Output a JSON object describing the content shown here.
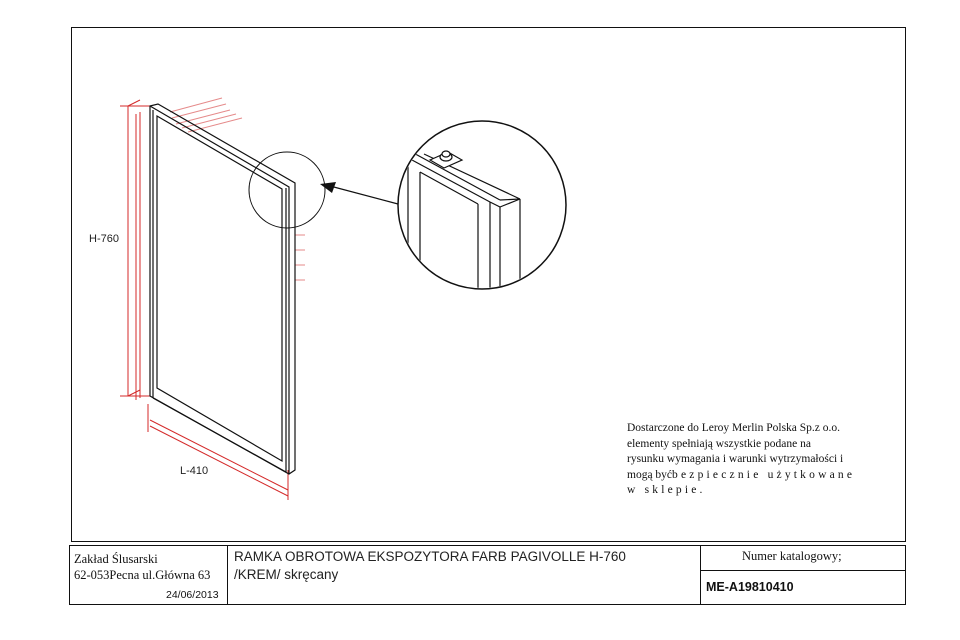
{
  "dimensions": {
    "height_label": "H-760",
    "length_label": "L-410"
  },
  "note": {
    "line1": "Dostarczone do Leroy Merlin Polska Sp.z o.o.",
    "line2": "elementy spełniają wszystkie podane na",
    "line3": "rysunku wymagania i warunki wytrzymałości i",
    "line4a": "mogą być",
    "line4b": "bezpiecznie użytkowane",
    "line5": "w sklepie."
  },
  "title_block": {
    "company_name": "Zakład Ślusarski",
    "company_address": "62-053Pecna ul.Główna 63",
    "date": "24/06/2013",
    "title_line1": "RAMKA OBROTOWA EKSPOZYTORA FARB PAGIVOLLE H-760",
    "title_line2": "/KREM/ skręcany",
    "catalog_label": "Numer katalogowy;",
    "catalog_number": "ME-A19810410"
  },
  "colors": {
    "line": "#111111",
    "dimension": "#d42a2a",
    "paper": "#ffffff"
  },
  "icons": {
    "detail_arrow": "arrow-left-icon"
  }
}
